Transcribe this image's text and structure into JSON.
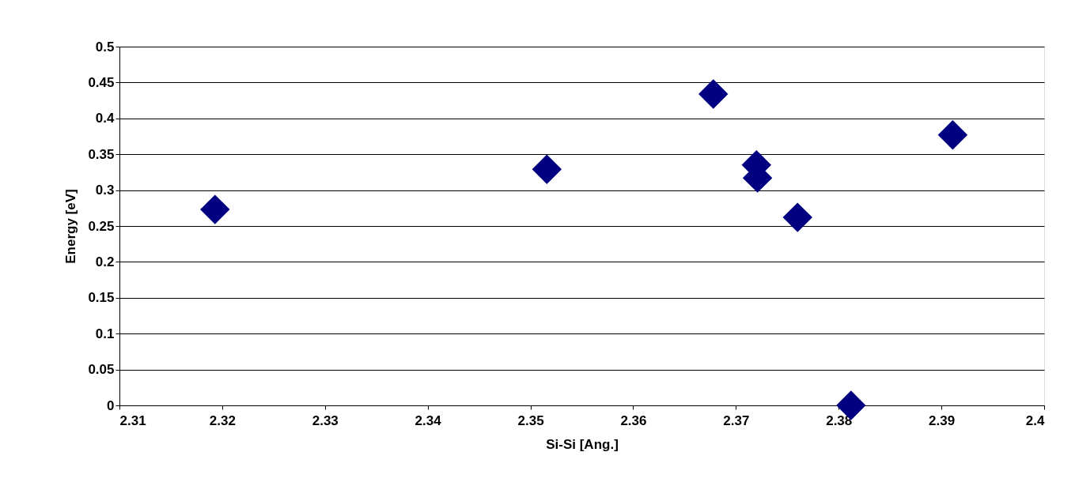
{
  "chart_data": {
    "type": "scatter",
    "xlabel": "Si-Si  [Ang.]",
    "ylabel": "Energy  [eV]",
    "x": [
      2.3193,
      2.3516,
      2.3678,
      2.372,
      2.3721,
      2.376,
      2.3812,
      2.3911
    ],
    "series": [
      {
        "color": "#000080",
        "values": [
          0.273,
          0.329,
          0.434,
          0.335,
          0.317,
          0.262,
          0,
          0.377
        ]
      }
    ],
    "xlim": [
      2.31,
      2.4
    ],
    "xticks": [
      2.31,
      2.32,
      2.33,
      2.34,
      2.35,
      2.36,
      2.37,
      2.38,
      2.39,
      2.4
    ],
    "ylim": [
      0,
      0.5
    ],
    "yticks": [
      0,
      0.05,
      0.1,
      0.15,
      0.2,
      0.25,
      0.3,
      0.35,
      0.4,
      0.45,
      0.5
    ],
    "grid": "y",
    "marker": "diamond"
  }
}
